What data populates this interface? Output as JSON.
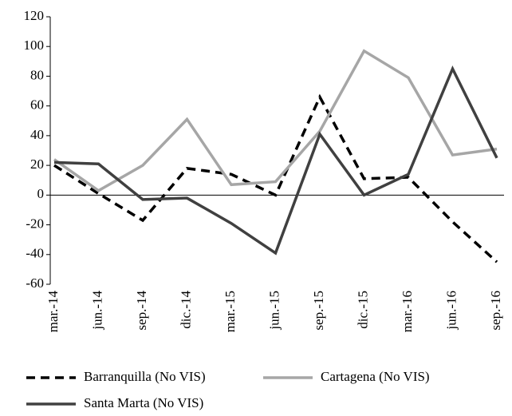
{
  "chart_data": {
    "type": "line",
    "categories": [
      "mar.-14",
      "jun.-14",
      "sep.-14",
      "dic.-14",
      "mar.-15",
      "jun.-15",
      "sep.-15",
      "dic.-15",
      "mar.-16",
      "jun.-16",
      "sep.-16"
    ],
    "series": [
      {
        "name": "Barranquilla (No VIS)",
        "color": "#000000",
        "dash": true,
        "values": [
          20,
          1,
          -17,
          18,
          14,
          0,
          66,
          11,
          12,
          -18,
          -45
        ]
      },
      {
        "name": "Cartagena (No VIS)",
        "color": "#a6a6a6",
        "dash": false,
        "values": [
          24,
          3,
          20,
          51,
          7,
          9,
          43,
          97,
          79,
          27,
          31
        ]
      },
      {
        "name": "Santa Marta (No VIS)",
        "color": "#404040",
        "dash": false,
        "values": [
          22,
          21,
          -3,
          -2,
          -19,
          -39,
          41,
          0,
          14,
          85,
          25
        ]
      }
    ],
    "ylim": [
      -60,
      120
    ],
    "yticks": [
      -60,
      -40,
      -20,
      0,
      20,
      40,
      60,
      80,
      100,
      120
    ],
    "legend": "bottom"
  }
}
